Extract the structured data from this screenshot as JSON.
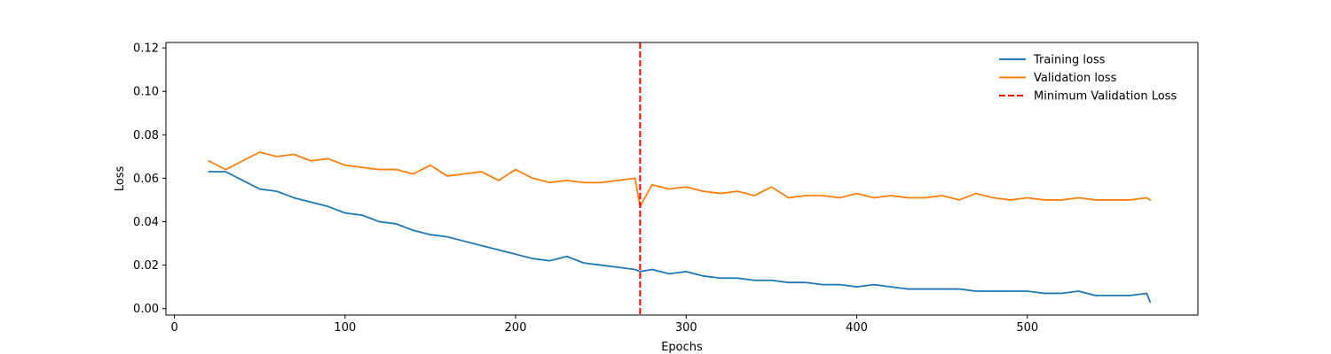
{
  "chart_data": {
    "type": "line",
    "title": "",
    "xlabel": "Epochs",
    "ylabel": "Loss",
    "xlim": [
      -5,
      600
    ],
    "ylim": [
      -0.003,
      0.1225
    ],
    "xticks": [
      0,
      100,
      200,
      300,
      400,
      500
    ],
    "yticks": [
      0.0,
      0.02,
      0.04,
      0.06,
      0.08,
      0.1,
      0.12
    ],
    "ytick_labels": [
      "0.00",
      "0.02",
      "0.04",
      "0.06",
      "0.08",
      "0.10",
      "0.12"
    ],
    "grid": false,
    "legend": "top-right",
    "series": [
      {
        "name": "Training loss",
        "color": "#1f77b4",
        "style": "solid",
        "x": [
          20,
          30,
          40,
          50,
          60,
          70,
          80,
          90,
          100,
          110,
          120,
          130,
          140,
          150,
          160,
          170,
          180,
          190,
          200,
          210,
          220,
          230,
          240,
          250,
          260,
          270,
          273,
          280,
          290,
          300,
          310,
          320,
          330,
          340,
          350,
          360,
          370,
          380,
          390,
          400,
          410,
          420,
          430,
          440,
          450,
          460,
          470,
          480,
          490,
          500,
          510,
          520,
          530,
          540,
          550,
          560,
          570,
          572
        ],
        "y": [
          0.063,
          0.063,
          0.059,
          0.055,
          0.054,
          0.051,
          0.049,
          0.047,
          0.044,
          0.043,
          0.04,
          0.039,
          0.036,
          0.034,
          0.033,
          0.031,
          0.029,
          0.027,
          0.025,
          0.023,
          0.022,
          0.024,
          0.021,
          0.02,
          0.019,
          0.018,
          0.017,
          0.018,
          0.016,
          0.017,
          0.015,
          0.014,
          0.014,
          0.013,
          0.013,
          0.012,
          0.012,
          0.011,
          0.011,
          0.01,
          0.011,
          0.01,
          0.009,
          0.009,
          0.009,
          0.009,
          0.008,
          0.008,
          0.008,
          0.008,
          0.007,
          0.007,
          0.008,
          0.006,
          0.006,
          0.006,
          0.007,
          0.003
        ]
      },
      {
        "name": "Validation loss",
        "color": "#ff7f0e",
        "style": "solid",
        "x": [
          20,
          30,
          40,
          50,
          60,
          70,
          80,
          90,
          100,
          110,
          120,
          130,
          140,
          150,
          160,
          170,
          180,
          190,
          200,
          210,
          220,
          230,
          240,
          250,
          260,
          270,
          273,
          280,
          290,
          300,
          310,
          320,
          330,
          340,
          350,
          360,
          370,
          380,
          390,
          400,
          410,
          420,
          430,
          440,
          450,
          460,
          470,
          480,
          490,
          500,
          510,
          520,
          530,
          540,
          550,
          560,
          570,
          572
        ],
        "y": [
          0.068,
          0.064,
          0.068,
          0.072,
          0.07,
          0.071,
          0.068,
          0.069,
          0.066,
          0.065,
          0.064,
          0.064,
          0.062,
          0.066,
          0.061,
          0.062,
          0.063,
          0.059,
          0.064,
          0.06,
          0.058,
          0.059,
          0.058,
          0.058,
          0.059,
          0.06,
          0.047,
          0.057,
          0.055,
          0.056,
          0.054,
          0.053,
          0.054,
          0.052,
          0.056,
          0.051,
          0.052,
          0.052,
          0.051,
          0.053,
          0.051,
          0.052,
          0.051,
          0.051,
          0.052,
          0.05,
          0.053,
          0.051,
          0.05,
          0.051,
          0.05,
          0.05,
          0.051,
          0.05,
          0.05,
          0.05,
          0.051,
          0.05
        ]
      }
    ],
    "vlines": [
      {
        "name": "Minimum Validation Loss",
        "x": 273,
        "color": "#ff0000",
        "style": "dashed"
      }
    ]
  }
}
